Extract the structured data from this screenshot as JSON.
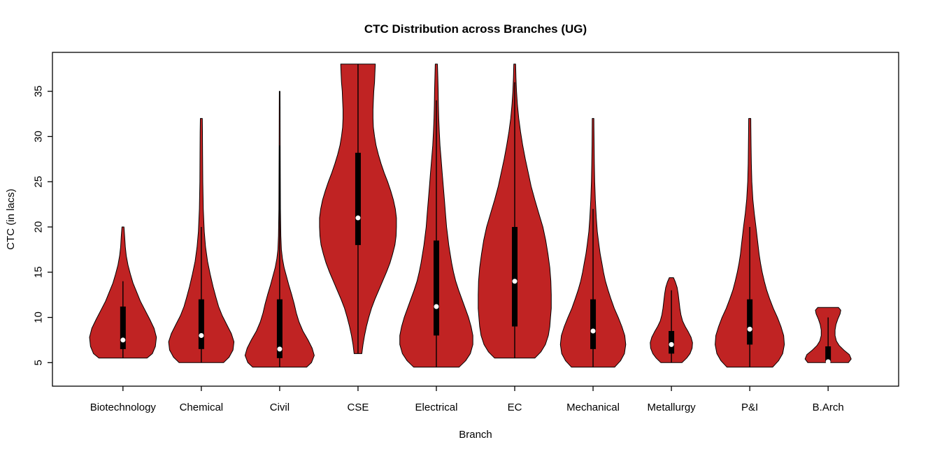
{
  "chart_data": {
    "type": "violin",
    "title": "CTC Distribution across Branches (UG)",
    "xlabel": "Branch",
    "ylabel": "CTC (in lacs)",
    "ylim": [
      2.4,
      39.3
    ],
    "y_ticks": [
      5,
      10,
      15,
      20,
      25,
      30,
      35
    ],
    "grid": false,
    "legend": "none",
    "violin_fill": "#c02323",
    "violin_outline": "#000000",
    "box_color": "#000000",
    "median_dot_color": "#ffffff",
    "categories": [
      "Biotechnology",
      "Chemical",
      "Civil",
      "CSE",
      "Electrical",
      "EC",
      "Mechanical",
      "Metallurgy",
      "P&I",
      "B.Arch"
    ],
    "series": [
      {
        "name": "Biotechnology",
        "min": 5.5,
        "max": 20,
        "q1": 6.5,
        "median": 7.5,
        "q3": 11.2,
        "whisker_low": 5.5,
        "whisker_high": 14,
        "rel_width": 0.87,
        "density": [
          [
            5.5,
            0.72
          ],
          [
            6,
            0.88
          ],
          [
            6.8,
            0.97
          ],
          [
            7.8,
            1.0
          ],
          [
            8.8,
            0.93
          ],
          [
            9.8,
            0.8
          ],
          [
            10.8,
            0.66
          ],
          [
            11.8,
            0.52
          ],
          [
            12.8,
            0.41
          ],
          [
            13.8,
            0.3
          ],
          [
            14.8,
            0.22
          ],
          [
            15.8,
            0.15
          ],
          [
            16.8,
            0.1
          ],
          [
            17.8,
            0.07
          ],
          [
            19,
            0.05
          ],
          [
            20,
            0.03
          ]
        ]
      },
      {
        "name": "Chemical",
        "min": 5,
        "max": 32,
        "q1": 6.5,
        "median": 8,
        "q3": 12,
        "whisker_low": 5,
        "whisker_high": 20,
        "rel_width": 0.85,
        "density": [
          [
            5,
            0.68
          ],
          [
            5.6,
            0.85
          ],
          [
            6.4,
            0.97
          ],
          [
            7.3,
            1.0
          ],
          [
            8.2,
            0.92
          ],
          [
            9.2,
            0.78
          ],
          [
            10.2,
            0.64
          ],
          [
            11.2,
            0.53
          ],
          [
            12.2,
            0.45
          ],
          [
            13.4,
            0.36
          ],
          [
            14.8,
            0.27
          ],
          [
            16.2,
            0.19
          ],
          [
            17.8,
            0.13
          ],
          [
            19.5,
            0.09
          ],
          [
            22,
            0.06
          ],
          [
            25,
            0.045
          ],
          [
            28,
            0.04
          ],
          [
            30.5,
            0.035
          ],
          [
            32,
            0.03
          ]
        ]
      },
      {
        "name": "Civil",
        "min": 4.5,
        "max": 35,
        "q1": 5.5,
        "median": 6.5,
        "q3": 12,
        "whisker_low": 4.5,
        "whisker_high": 29,
        "rel_width": 0.9,
        "density": [
          [
            4.5,
            0.78
          ],
          [
            5,
            0.92
          ],
          [
            5.8,
            1.0
          ],
          [
            6.6,
            0.94
          ],
          [
            7.5,
            0.82
          ],
          [
            8.5,
            0.67
          ],
          [
            9.5,
            0.56
          ],
          [
            10.5,
            0.48
          ],
          [
            11.5,
            0.42
          ],
          [
            12.5,
            0.35
          ],
          [
            13.5,
            0.27
          ],
          [
            14.5,
            0.2
          ],
          [
            15.5,
            0.13
          ],
          [
            16.5,
            0.08
          ],
          [
            17.5,
            0.05
          ],
          [
            19,
            0.035
          ],
          [
            22,
            0.022
          ],
          [
            26,
            0.018
          ],
          [
            30,
            0.015
          ],
          [
            33,
            0.012
          ],
          [
            35,
            0.01
          ]
        ]
      },
      {
        "name": "CSE",
        "min": 6,
        "max": 38,
        "q1": 18,
        "median": 21,
        "q3": 28.2,
        "whisker_low": 6,
        "whisker_high": 38,
        "rel_width": 1.0,
        "density": [
          [
            6,
            0.1
          ],
          [
            7,
            0.13
          ],
          [
            8,
            0.17
          ],
          [
            9,
            0.22
          ],
          [
            10,
            0.28
          ],
          [
            11,
            0.35
          ],
          [
            12,
            0.44
          ],
          [
            13,
            0.54
          ],
          [
            14,
            0.64
          ],
          [
            15,
            0.74
          ],
          [
            16,
            0.83
          ],
          [
            17,
            0.9
          ],
          [
            18,
            0.96
          ],
          [
            19,
            0.99
          ],
          [
            20,
            1.0
          ],
          [
            21,
            1.0
          ],
          [
            22,
            0.97
          ],
          [
            23,
            0.92
          ],
          [
            24,
            0.85
          ],
          [
            25,
            0.77
          ],
          [
            26,
            0.68
          ],
          [
            27,
            0.6
          ],
          [
            28,
            0.53
          ],
          [
            29,
            0.47
          ],
          [
            30,
            0.43
          ],
          [
            31,
            0.4
          ],
          [
            32,
            0.39
          ],
          [
            33,
            0.39
          ],
          [
            34,
            0.4
          ],
          [
            35,
            0.41
          ],
          [
            36,
            0.43
          ],
          [
            37,
            0.44
          ],
          [
            38,
            0.45
          ]
        ]
      },
      {
        "name": "Electrical",
        "min": 4.5,
        "max": 38,
        "q1": 8,
        "median": 11.2,
        "q3": 18.5,
        "whisker_low": 4.5,
        "whisker_high": 34,
        "rel_width": 0.95,
        "density": [
          [
            4.5,
            0.62
          ],
          [
            5.2,
            0.8
          ],
          [
            6,
            0.93
          ],
          [
            7,
            1.0
          ],
          [
            8,
            1.0
          ],
          [
            9,
            0.95
          ],
          [
            10,
            0.88
          ],
          [
            11,
            0.79
          ],
          [
            12,
            0.7
          ],
          [
            13,
            0.61
          ],
          [
            14,
            0.53
          ],
          [
            15,
            0.47
          ],
          [
            16,
            0.42
          ],
          [
            17,
            0.38
          ],
          [
            18,
            0.34
          ],
          [
            19,
            0.31
          ],
          [
            20,
            0.28
          ],
          [
            21.5,
            0.25
          ],
          [
            23,
            0.22
          ],
          [
            24.5,
            0.19
          ],
          [
            26,
            0.16
          ],
          [
            27.5,
            0.13
          ],
          [
            29,
            0.1
          ],
          [
            30.5,
            0.08
          ],
          [
            32,
            0.065
          ],
          [
            33.5,
            0.055
          ],
          [
            35,
            0.05
          ],
          [
            36.5,
            0.04
          ],
          [
            38,
            0.03
          ]
        ]
      },
      {
        "name": "EC",
        "min": 5.5,
        "max": 38,
        "q1": 9,
        "median": 14,
        "q3": 20,
        "whisker_low": 5.5,
        "whisker_high": 36,
        "rel_width": 0.95,
        "density": [
          [
            5.5,
            0.55
          ],
          [
            6.2,
            0.72
          ],
          [
            7,
            0.84
          ],
          [
            8,
            0.92
          ],
          [
            9,
            0.96
          ],
          [
            10,
            0.98
          ],
          [
            11,
            1.0
          ],
          [
            12.5,
            1.0
          ],
          [
            14,
            0.99
          ],
          [
            15.5,
            0.96
          ],
          [
            17,
            0.91
          ],
          [
            18.5,
            0.85
          ],
          [
            20,
            0.77
          ],
          [
            21.5,
            0.66
          ],
          [
            23,
            0.55
          ],
          [
            24.5,
            0.45
          ],
          [
            26,
            0.37
          ],
          [
            27.5,
            0.29
          ],
          [
            29,
            0.22
          ],
          [
            30.5,
            0.16
          ],
          [
            32,
            0.11
          ],
          [
            33.5,
            0.075
          ],
          [
            35,
            0.05
          ],
          [
            36.5,
            0.035
          ],
          [
            38,
            0.025
          ]
        ]
      },
      {
        "name": "Mechanical",
        "min": 4.5,
        "max": 32,
        "q1": 6.5,
        "median": 8.5,
        "q3": 12,
        "whisker_low": 4.5,
        "whisker_high": 22,
        "rel_width": 0.85,
        "density": [
          [
            4.5,
            0.66
          ],
          [
            5.2,
            0.84
          ],
          [
            6,
            0.96
          ],
          [
            7,
            1.0
          ],
          [
            8,
            0.97
          ],
          [
            9,
            0.88
          ],
          [
            10,
            0.77
          ],
          [
            11,
            0.65
          ],
          [
            12,
            0.55
          ],
          [
            13,
            0.46
          ],
          [
            14,
            0.38
          ],
          [
            15,
            0.32
          ],
          [
            16,
            0.27
          ],
          [
            17,
            0.22
          ],
          [
            18,
            0.18
          ],
          [
            19.5,
            0.13
          ],
          [
            21,
            0.1
          ],
          [
            23,
            0.07
          ],
          [
            25,
            0.05
          ],
          [
            27,
            0.04
          ],
          [
            29,
            0.032
          ],
          [
            31,
            0.027
          ],
          [
            32,
            0.025
          ]
        ]
      },
      {
        "name": "Metallurgy",
        "min": 5,
        "max": 14.4,
        "q1": 6,
        "median": 7,
        "q3": 8.5,
        "whisker_low": 5,
        "whisker_high": 13,
        "rel_width": 0.55,
        "density": [
          [
            5,
            0.5
          ],
          [
            5.5,
            0.72
          ],
          [
            6,
            0.88
          ],
          [
            6.6,
            0.98
          ],
          [
            7.2,
            1.0
          ],
          [
            7.8,
            0.93
          ],
          [
            8.4,
            0.8
          ],
          [
            9,
            0.65
          ],
          [
            9.6,
            0.53
          ],
          [
            10.3,
            0.45
          ],
          [
            11,
            0.4
          ],
          [
            11.8,
            0.36
          ],
          [
            12.6,
            0.32
          ],
          [
            13.3,
            0.27
          ],
          [
            13.9,
            0.19
          ],
          [
            14.4,
            0.1
          ]
        ]
      },
      {
        "name": "P&I",
        "min": 4.5,
        "max": 32,
        "q1": 7,
        "median": 8.7,
        "q3": 12,
        "whisker_low": 4.5,
        "whisker_high": 20,
        "rel_width": 0.9,
        "density": [
          [
            4.5,
            0.66
          ],
          [
            5.2,
            0.83
          ],
          [
            6,
            0.95
          ],
          [
            7,
            1.0
          ],
          [
            8,
            0.98
          ],
          [
            9,
            0.9
          ],
          [
            10,
            0.8
          ],
          [
            11,
            0.68
          ],
          [
            12,
            0.58
          ],
          [
            13,
            0.49
          ],
          [
            14,
            0.42
          ],
          [
            15,
            0.36
          ],
          [
            16,
            0.31
          ],
          [
            17,
            0.27
          ],
          [
            18,
            0.24
          ],
          [
            19,
            0.21
          ],
          [
            20,
            0.18
          ],
          [
            21.5,
            0.13
          ],
          [
            23,
            0.09
          ],
          [
            25,
            0.06
          ],
          [
            27,
            0.045
          ],
          [
            29,
            0.038
          ],
          [
            31,
            0.032
          ],
          [
            32,
            0.03
          ]
        ]
      },
      {
        "name": "B.Arch",
        "min": 5,
        "max": 11.1,
        "q1": 5,
        "median": 5.1,
        "q3": 6.8,
        "whisker_low": 5,
        "whisker_high": 10,
        "rel_width": 0.6,
        "density": [
          [
            5,
            0.88
          ],
          [
            5.4,
            1.0
          ],
          [
            5.9,
            0.92
          ],
          [
            6.4,
            0.68
          ],
          [
            6.9,
            0.48
          ],
          [
            7.4,
            0.36
          ],
          [
            8,
            0.3
          ],
          [
            8.6,
            0.3
          ],
          [
            9.2,
            0.34
          ],
          [
            9.8,
            0.42
          ],
          [
            10.4,
            0.52
          ],
          [
            10.8,
            0.55
          ],
          [
            11.1,
            0.45
          ]
        ]
      }
    ]
  }
}
